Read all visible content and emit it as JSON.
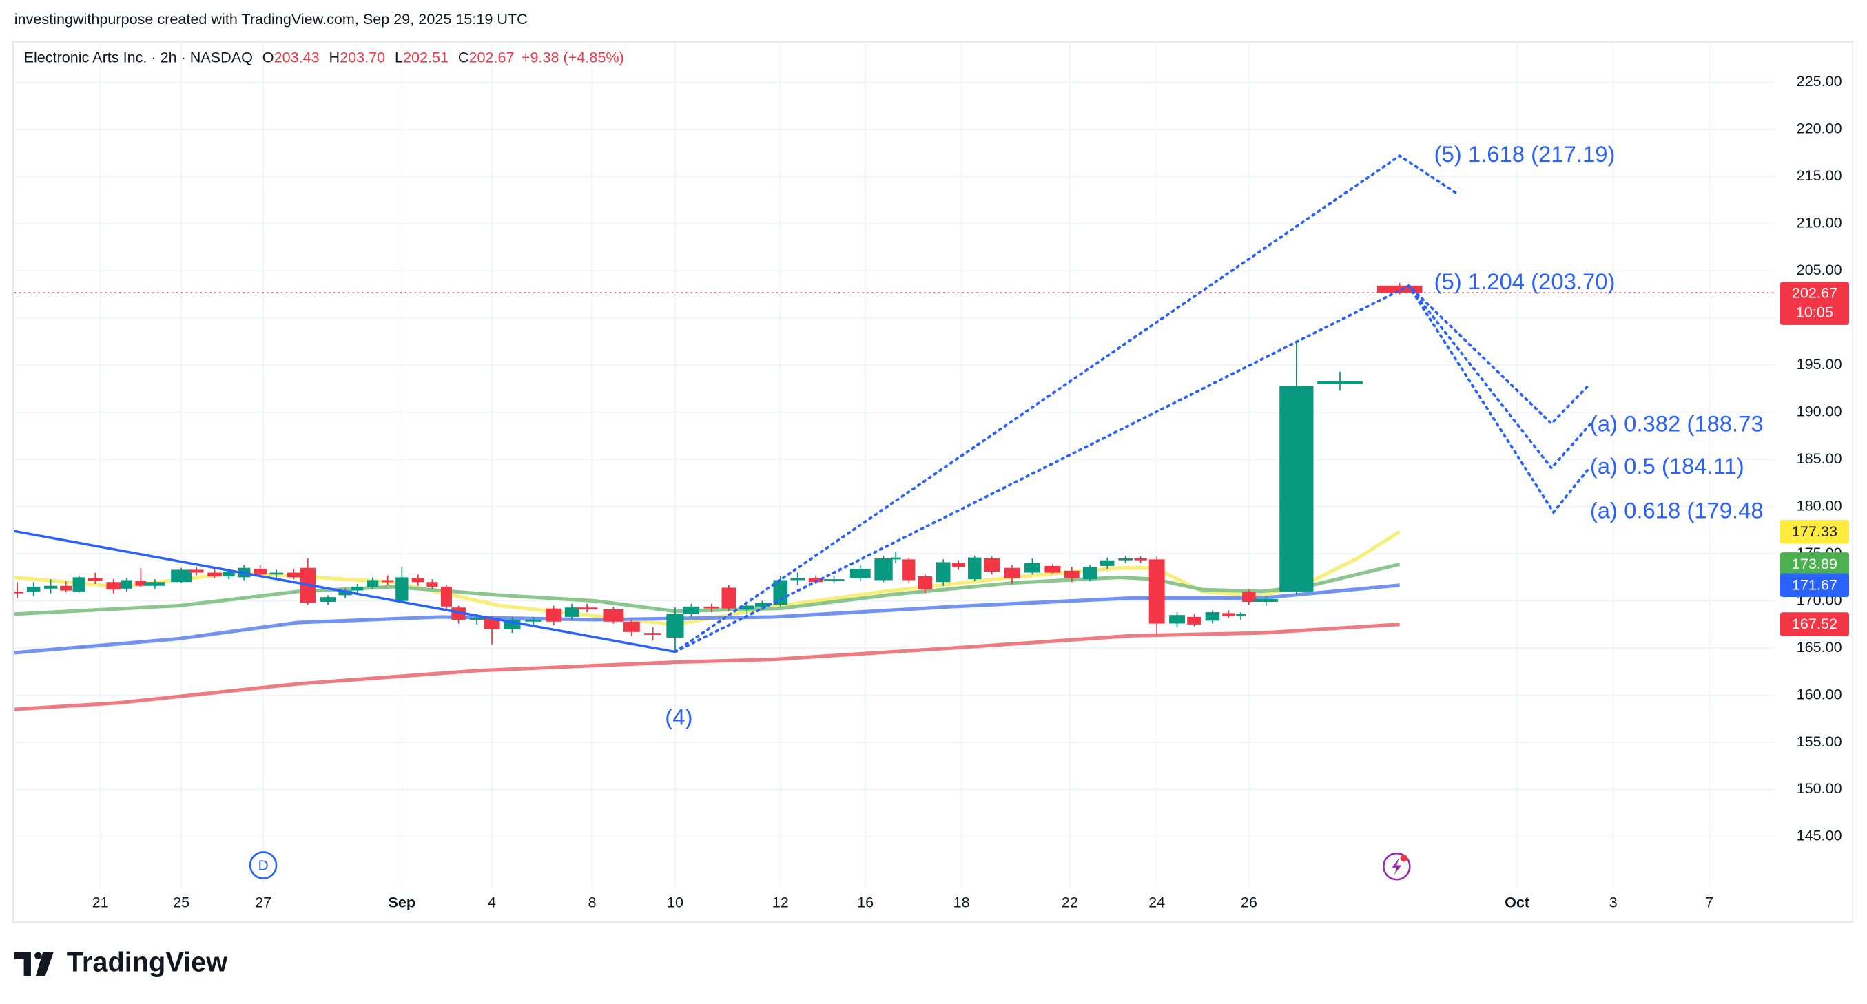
{
  "header": {
    "credit": "investingwithpurpose created with TradingView.com, Sep 29, 2025 15:19 UTC",
    "symbol": "Electronic Arts Inc. · 2h · NASDAQ",
    "ohlc": [
      {
        "key": "O",
        "value": "203.43"
      },
      {
        "key": "H",
        "value": "203.70"
      },
      {
        "key": "L",
        "value": "202.51"
      },
      {
        "key": "C",
        "value": "202.67"
      }
    ],
    "change": "+9.38 (+4.85%)"
  },
  "footer": {
    "brand": "TradingView"
  },
  "chart_data": {
    "type": "candlestick",
    "xlim": [
      -8.5,
      165.4
    ],
    "ylim": [
      139.7,
      229.3
    ],
    "grid": true,
    "xticks": [
      {
        "value": 0,
        "label": "21"
      },
      {
        "value": 8,
        "label": "25"
      },
      {
        "value": 16.1,
        "label": "27"
      },
      {
        "value": 29.8,
        "label": "Sep"
      },
      {
        "value": 38.7,
        "label": "4"
      },
      {
        "value": 48.6,
        "label": "8"
      },
      {
        "value": 56.8,
        "label": "10"
      },
      {
        "value": 67.2,
        "label": "12"
      },
      {
        "value": 75.6,
        "label": "16"
      },
      {
        "value": 85.1,
        "label": "18"
      },
      {
        "value": 95.8,
        "label": "22"
      },
      {
        "value": 104.4,
        "label": "24"
      },
      {
        "value": 113.5,
        "label": "26"
      },
      {
        "value": 140,
        "label": "Oct"
      },
      {
        "value": 149.5,
        "label": "3"
      },
      {
        "value": 159,
        "label": "7"
      }
    ],
    "yticks": [
      {
        "value": 145,
        "label": "145.00"
      },
      {
        "value": 150,
        "label": "150.00"
      },
      {
        "value": 155,
        "label": "155.00"
      },
      {
        "value": 160,
        "label": "160.00"
      },
      {
        "value": 165,
        "label": "165.00"
      },
      {
        "value": 170,
        "label": "170.00"
      },
      {
        "value": 175,
        "label": "175.00"
      },
      {
        "value": 180,
        "label": "180.00"
      },
      {
        "value": 185,
        "label": "185.00"
      },
      {
        "value": 190,
        "label": "190.00"
      },
      {
        "value": 195,
        "label": "195.00"
      },
      {
        "value": 200,
        "label": "200.00"
      },
      {
        "value": 205,
        "label": "205.00"
      },
      {
        "value": 210,
        "label": "210.00"
      },
      {
        "value": 215,
        "label": "215.00"
      },
      {
        "value": 220,
        "label": "220.00"
      },
      {
        "value": 225,
        "label": "225.00"
      }
    ],
    "up_color": "#089981",
    "down_color": "#f23645",
    "candles": {
      "x": [
        -8.2,
        -6.6,
        -4.9,
        -3.4,
        -2.1,
        -0.5,
        1.3,
        2.6,
        4.0,
        5.4,
        8.0,
        9.5,
        11.3,
        12.7,
        14.2,
        15.8,
        17.4,
        19.1,
        20.5,
        22.5,
        24.2,
        25.4,
        26.9,
        28.4,
        29.8,
        31.4,
        32.8,
        34.2,
        35.4,
        37.2,
        38.7,
        40.7,
        42.8,
        44.8,
        46.6,
        48.1,
        50.7,
        52.5,
        54.6,
        56.8,
        58.4,
        60.4,
        62.1,
        63.9,
        65.4,
        67.2,
        68.9,
        70.7,
        72.5,
        75.1,
        77.4,
        78.6,
        79.9,
        81.5,
        83.3,
        84.8,
        86.4,
        88.1,
        90.1,
        92.1,
        94.1,
        96.0,
        97.8,
        99.5,
        101.3,
        102.8,
        104.4,
        106.4,
        108.1,
        109.9,
        111.5,
        112.7,
        113.5,
        115.2,
        118.2,
        122.5,
        128.4
      ],
      "open": [
        171.0,
        171.0,
        171.3,
        171.6,
        171.0,
        172.4,
        172.0,
        171.3,
        172.1,
        171.6,
        172.0,
        173.3,
        173.0,
        172.6,
        172.5,
        173.4,
        172.8,
        173.0,
        173.5,
        169.9,
        170.6,
        171.1,
        171.5,
        172.2,
        170.0,
        172.4,
        172.0,
        171.5,
        169.3,
        168.0,
        168.2,
        167.0,
        167.8,
        169.2,
        168.3,
        169.3,
        169.1,
        167.8,
        166.6,
        166.1,
        168.6,
        169.4,
        171.4,
        169.1,
        169.4,
        169.6,
        172.2,
        172.4,
        172.1,
        172.4,
        172.2,
        174.4,
        174.4,
        172.6,
        172.0,
        174.0,
        172.3,
        174.5,
        173.5,
        173.0,
        173.7,
        173.2,
        172.3,
        173.7,
        174.3,
        174.5,
        174.4,
        167.6,
        168.3,
        167.9,
        168.7,
        168.4,
        171.0,
        169.9,
        171.0,
        193.0,
        203.43
      ],
      "high": [
        172.0,
        172.0,
        172.3,
        172.1,
        172.7,
        173.0,
        172.3,
        172.4,
        173.5,
        172.3,
        173.5,
        173.6,
        173.4,
        173.2,
        173.8,
        173.8,
        173.3,
        173.4,
        174.5,
        170.6,
        171.3,
        171.8,
        172.5,
        172.7,
        173.6,
        172.8,
        172.3,
        171.7,
        169.5,
        168.6,
        168.4,
        168.3,
        168.3,
        169.5,
        169.7,
        169.7,
        169.4,
        168.0,
        167.2,
        169.3,
        169.7,
        169.7,
        171.7,
        169.6,
        170.0,
        172.6,
        173.0,
        172.7,
        172.6,
        173.8,
        174.8,
        175.2,
        174.6,
        172.8,
        174.4,
        174.3,
        174.8,
        174.7,
        173.8,
        174.5,
        173.9,
        173.6,
        173.8,
        174.6,
        174.8,
        174.7,
        174.7,
        168.8,
        168.6,
        169.0,
        169.0,
        168.8,
        171.2,
        170.5,
        197.4,
        194.3,
        203.7
      ],
      "low": [
        170.3,
        170.5,
        170.8,
        170.9,
        170.9,
        171.8,
        170.8,
        171.0,
        171.5,
        171.3,
        171.9,
        172.7,
        172.4,
        172.3,
        172.2,
        172.5,
        172.2,
        172.3,
        169.6,
        169.6,
        170.3,
        170.8,
        171.2,
        171.7,
        169.9,
        171.6,
        171.3,
        169.0,
        167.6,
        167.5,
        165.4,
        166.6,
        167.3,
        167.4,
        168.0,
        168.8,
        167.6,
        166.3,
        165.8,
        164.6,
        168.3,
        168.8,
        168.9,
        168.6,
        169.0,
        169.4,
        171.7,
        171.8,
        171.9,
        172.1,
        172.0,
        174.0,
        171.9,
        170.8,
        171.6,
        173.3,
        172.1,
        172.8,
        171.8,
        172.8,
        172.9,
        172.0,
        172.1,
        173.4,
        174.0,
        174.0,
        166.4,
        167.2,
        167.3,
        167.6,
        168.2,
        168.0,
        169.6,
        169.5,
        170.6,
        192.3,
        202.51
      ],
      "close": [
        170.8,
        171.5,
        171.6,
        171.1,
        172.5,
        172.1,
        171.2,
        172.2,
        171.6,
        172.0,
        173.3,
        173.0,
        172.6,
        173.1,
        173.5,
        172.8,
        173.0,
        172.5,
        169.8,
        170.4,
        171.1,
        171.5,
        172.2,
        172.0,
        172.5,
        172.0,
        171.5,
        169.4,
        168.0,
        168.2,
        167.0,
        168.0,
        168.0,
        167.8,
        169.3,
        169.2,
        167.8,
        166.7,
        166.4,
        168.6,
        169.4,
        169.2,
        169.2,
        169.5,
        169.8,
        172.2,
        172.4,
        172.0,
        172.3,
        173.4,
        174.5,
        174.6,
        172.2,
        171.2,
        174.1,
        173.6,
        174.6,
        173.1,
        172.4,
        174.0,
        173.0,
        172.4,
        173.6,
        174.3,
        174.5,
        174.3,
        167.6,
        168.5,
        167.5,
        168.8,
        168.4,
        168.6,
        169.9,
        170.2,
        192.8,
        193.3,
        202.67
      ]
    },
    "series": [
      {
        "color": "#f7ef7a",
        "x": [
          -8.5,
          1.9,
          13.6,
          28.9,
          39.5,
          56.8,
          67.2,
          77.4,
          90.1,
          100.7,
          104.2,
          108.9,
          114.8,
          119.5,
          124.2,
          128.4
        ],
        "values": [
          172.5,
          171.5,
          173.0,
          172.0,
          169.5,
          167.5,
          169.5,
          171.0,
          172.5,
          173.5,
          173.5,
          171.0,
          170.5,
          172.0,
          174.5,
          177.33
        ]
      },
      {
        "color": "#8cc68f",
        "x": [
          -8.5,
          7.8,
          19.5,
          28.9,
          39.5,
          48.9,
          56.8,
          67.2,
          78.4,
          90.1,
          100.7,
          104.2,
          108.9,
          114.8,
          119.5,
          128.4
        ],
        "values": [
          168.6,
          169.5,
          171.0,
          171.5,
          170.6,
          170.0,
          168.9,
          169.2,
          170.7,
          171.9,
          172.5,
          172.3,
          171.2,
          171.0,
          171.6,
          173.89
        ]
      },
      {
        "color": "#7393f2",
        "x": [
          -8.5,
          7.8,
          19.5,
          33.6,
          48.9,
          66.6,
          84.2,
          101.9,
          114.8,
          128.4
        ],
        "values": [
          164.5,
          166.0,
          167.7,
          168.3,
          168.0,
          168.3,
          169.4,
          170.3,
          170.3,
          171.67
        ]
      },
      {
        "color": "#ef7b82",
        "x": [
          -8.5,
          1.9,
          19.5,
          37.2,
          56.8,
          66.6,
          84.2,
          101.9,
          114.8,
          128.4
        ],
        "values": [
          158.5,
          159.2,
          161.2,
          162.6,
          163.5,
          163.8,
          165.0,
          166.3,
          166.6,
          167.52
        ]
      }
    ],
    "label_text_colors": [
      "#131722",
      "#ffffff",
      "#ffffff",
      "#ffffff"
    ],
    "label_fills": [
      "#ffeb3b",
      "#4caf50",
      "#2962ff",
      "#f23645"
    ],
    "last_price": {
      "value": 202.67,
      "countdown": "10:05",
      "color": "#f23645"
    },
    "drawings": [
      {
        "style": "solid",
        "color": "#2962ff",
        "x": [
          -8.5,
          56.8
        ],
        "y": [
          177.4,
          164.6
        ]
      },
      {
        "style": "dotted",
        "color": "#2962ff",
        "x": [
          56.8,
          128.4,
          134.2
        ],
        "y": [
          164.6,
          217.2,
          213.1
        ]
      },
      {
        "style": "dotted",
        "color": "#2962ff",
        "x": [
          56.8,
          129.3,
          143.4,
          147.2
        ],
        "y": [
          164.6,
          203.4,
          188.8,
          193.0
        ]
      },
      {
        "style": "dotted",
        "color": "#2962ff",
        "x": [
          129.3,
          143.4,
          147.2
        ],
        "y": [
          203.4,
          184.1,
          188.7
        ]
      },
      {
        "style": "dotted",
        "color": "#2962ff",
        "x": [
          129.3,
          143.6,
          147.2
        ],
        "y": [
          203.4,
          179.4,
          184.2
        ]
      }
    ],
    "annotations": [
      {
        "text": "(5) 1.618 (217.19)",
        "x": 131.8,
        "y": 217.2
      },
      {
        "text": "(5) 1.204 (203.70)",
        "x": 131.8,
        "y": 203.7
      },
      {
        "text": "(a) 0.382 (188.73",
        "x": 147.2,
        "y": 188.6
      },
      {
        "text": "(a) 0.5 (184.11)",
        "x": 147.2,
        "y": 184.1
      },
      {
        "text": "(a) 0.618 (179.48",
        "x": 147.2,
        "y": 179.4
      },
      {
        "text": "(4)",
        "x": 55.8,
        "y": 157.5
      }
    ],
    "dividend_marker": {
      "x": 16.1,
      "label": "D"
    }
  }
}
